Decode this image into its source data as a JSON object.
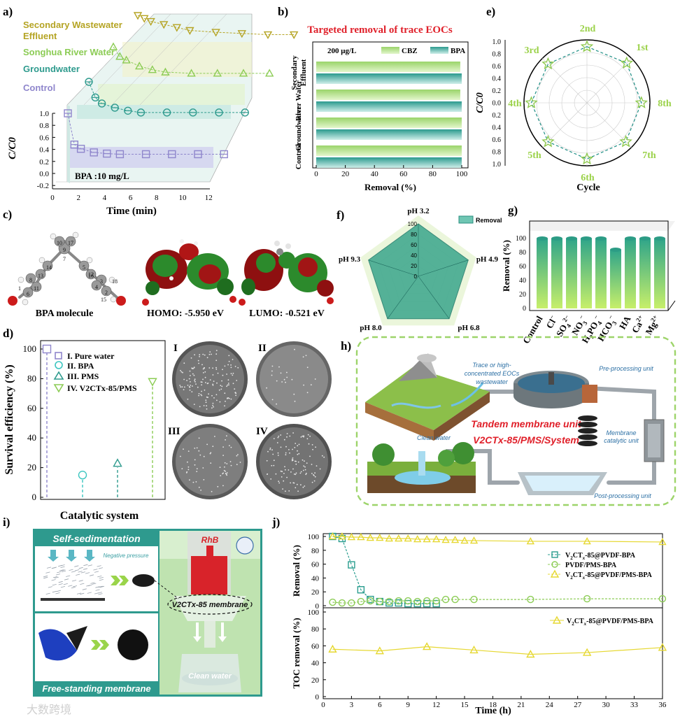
{
  "panels": {
    "a": {
      "label": "a)",
      "legend": [
        "Secondary Wastewater",
        "Effluent",
        "Songhua River Water",
        "Groundwater",
        "Control"
      ],
      "legend_colors": [
        "#b5a424",
        "#b5a424",
        "#8ccc55",
        "#2f9b8e",
        "#8f86cc"
      ],
      "annotation": "BPA :10 mg/L",
      "xlabel": "Time (min)",
      "ylabel": "C/C0",
      "xticks": [
        "0",
        "2",
        "4",
        "6",
        "8",
        "10",
        "12"
      ],
      "yticks": [
        "1.0",
        "0.8",
        "0.6",
        "0.4",
        "0.2",
        "0.0",
        "-0.2"
      ]
    },
    "b": {
      "label": "b)",
      "title": "Targeted removal of trace EOCs",
      "title_color": "#e0202a",
      "conc": "200 μg/L",
      "legend": [
        "CBZ",
        "BPA"
      ],
      "categories": [
        "Secondary Effluent",
        "River Water",
        "Groundwater",
        "Control"
      ],
      "cat_lines": [
        [
          "Secondary",
          "Effluent"
        ],
        [
          "River Water"
        ],
        [
          "Groundwater"
        ],
        [
          "Control"
        ]
      ],
      "xlabel": "Removal (%)",
      "xticks": [
        "0",
        "20",
        "40",
        "60",
        "80",
        "100"
      ]
    },
    "c": {
      "label": "c)",
      "captions": [
        "BPA molecule",
        "HOMO: -5.950 eV",
        "LUMO: -0.521 eV"
      ],
      "atom_numbers": [
        "10",
        "17",
        "9",
        "7",
        "13",
        "8",
        "5",
        "16",
        "3",
        "14",
        "4",
        "11",
        "2",
        "6",
        "12",
        "1",
        "18",
        "15"
      ]
    },
    "d": {
      "label": "d)",
      "ylabel": "Survival efficiency (%)",
      "xlabel": "Catalytic system",
      "yticks": [
        "100",
        "80",
        "60",
        "40",
        "20",
        "0"
      ],
      "legend": [
        "I. Pure water",
        "II. BPA",
        "III. PMS",
        "IV. V2CTx-85/PMS"
      ],
      "plate_labels": [
        "I",
        "II",
        "III",
        "IV"
      ]
    },
    "e": {
      "label": "e)",
      "ylabel": "C/C0",
      "xlabel": "Cycle",
      "radial_ticks": [
        "1.0",
        "0.8",
        "0.6",
        "0.4",
        "0.2",
        "0.0",
        "0.2",
        "0.4",
        "0.6",
        "0.8",
        "1.0"
      ],
      "cycles": [
        "2nd",
        "1st",
        "8th",
        "7th",
        "6th",
        "5th",
        "4th",
        "3rd"
      ]
    },
    "f": {
      "label": "f)",
      "legend": "Removal",
      "axes": [
        "pH 3.2",
        "pH 4.9",
        "pH 6.8",
        "pH 8.0",
        "pH 9.3"
      ],
      "ticks": [
        "100",
        "80",
        "60",
        "40",
        "20",
        "0"
      ]
    },
    "g": {
      "label": "g)",
      "ylabel": "Removal (%)",
      "yticks": [
        "100",
        "80",
        "60",
        "40",
        "20",
        "0"
      ]
    },
    "h": {
      "label": "h)",
      "src_text": [
        "Trace or high-",
        "concentrated EOCs",
        "wastewater"
      ],
      "pre": "Pre-processing unit",
      "tandem": "Tandem membrane unit",
      "system": "V2CTx-85/PMS/System",
      "mcu": [
        "Membrane",
        "catalytic unit"
      ],
      "clean": "Clean water",
      "post": "Post-processing unit"
    },
    "i": {
      "label": "i)",
      "top": "Self-sedimentation",
      "np": "Negative pressure",
      "bottom": "Free-standing membrane",
      "rhb": "RhB",
      "membrane": "V2CTx-85 membrane",
      "clean": "Clean water"
    },
    "j": {
      "label": "j)",
      "ylabel_top": "Removal (%)",
      "ylabel_bottom": "TOC removal (%)",
      "xlabel": "Time (h)",
      "legend_top": [
        "V2CTx-85@PVDF-BPA",
        "PVDF/PMS-BPA",
        "V2CTx-85@PVDF/PMS-BPA"
      ],
      "legend_bottom": "V2CTx-85@PVDF/PMS-BPA",
      "yticks": [
        "100",
        "80",
        "60",
        "40",
        "20",
        "0"
      ],
      "xticks": [
        "0",
        "3",
        "6",
        "9",
        "12",
        "15",
        "18",
        "21",
        "24",
        "27",
        "30",
        "33",
        "36"
      ]
    }
  },
  "watermark": "大数跨境",
  "chart_data": [
    {
      "id": "a",
      "type": "line",
      "title": "",
      "xlabel": "Time (min)",
      "ylabel": "C/C0",
      "ylim": [
        -0.2,
        1.0
      ],
      "xlim": [
        0,
        12
      ],
      "series": [
        {
          "name": "Control",
          "x": [
            0,
            0.5,
            1,
            2,
            3,
            4,
            6,
            8,
            10,
            12
          ],
          "values": [
            1.0,
            0.48,
            0.41,
            0.35,
            0.33,
            0.32,
            0.32,
            0.32,
            0.32,
            0.32
          ]
        },
        {
          "name": "Groundwater",
          "x": [
            0,
            0.5,
            1,
            2,
            3,
            4,
            6,
            8,
            10,
            12
          ],
          "values": [
            1.0,
            0.74,
            0.64,
            0.57,
            0.52,
            0.49,
            0.49,
            0.49,
            0.49,
            0.49
          ]
        },
        {
          "name": "Songhua River Water",
          "x": [
            0,
            0.5,
            1,
            2,
            3,
            4,
            6,
            8,
            10,
            12
          ],
          "values": [
            1.0,
            0.84,
            0.78,
            0.68,
            0.62,
            0.58,
            0.56,
            0.56,
            0.56,
            0.56
          ]
        },
        {
          "name": "Secondary Wastewater Effluent",
          "x": [
            0,
            0.5,
            1,
            2,
            3,
            4,
            6,
            8,
            10,
            12
          ],
          "values": [
            1.0,
            0.95,
            0.9,
            0.85,
            0.8,
            0.75,
            0.72,
            0.7,
            0.68,
            0.68
          ]
        }
      ]
    },
    {
      "id": "b",
      "type": "bar",
      "title": "Targeted removal of trace EOCs",
      "xlabel": "Removal (%)",
      "ylabel": "",
      "categories": [
        "Secondary Effluent",
        "River Water",
        "Groundwater",
        "Control"
      ],
      "xlim": [
        0,
        100
      ],
      "series": [
        {
          "name": "CBZ",
          "values": [
            99,
            99,
            100,
            100
          ]
        },
        {
          "name": "BPA",
          "values": [
            100,
            100,
            100,
            100
          ]
        }
      ]
    },
    {
      "id": "d",
      "type": "scatter",
      "xlabel": "Catalytic system",
      "ylabel": "Survival efficiency (%)",
      "ylim": [
        0,
        100
      ],
      "categories": [
        "I. Pure water",
        "II. BPA",
        "III. PMS",
        "IV. V2CTx-85/PMS"
      ],
      "values": [
        100,
        15,
        23,
        78
      ]
    },
    {
      "id": "e",
      "type": "line",
      "xlabel": "Cycle",
      "ylabel": "C/C0",
      "categories": [
        "1st",
        "2nd",
        "3rd",
        "4th",
        "5th",
        "6th",
        "7th",
        "8th"
      ],
      "values": [
        0.97,
        0.97,
        0.95,
        0.96,
        0.95,
        0.97,
        0.95,
        0.94
      ]
    },
    {
      "id": "f",
      "type": "radar",
      "legend": "Removal",
      "categories": [
        "pH 3.2",
        "pH 4.9",
        "pH 6.8",
        "pH 8.0",
        "pH 9.3"
      ],
      "values": [
        100,
        100,
        100,
        100,
        100
      ],
      "range": [
        0,
        100
      ]
    },
    {
      "id": "g",
      "type": "bar",
      "ylabel": "Removal (%)",
      "ylim": [
        0,
        100
      ],
      "categories": [
        "Control",
        "Cl-",
        "SO4 2-",
        "NO3-",
        "H2PO4-",
        "HCO3-",
        "HA",
        "Ca2+",
        "Mg2+"
      ],
      "values": [
        100,
        100,
        100,
        100,
        100,
        84,
        100,
        100,
        100
      ]
    },
    {
      "id": "j-top",
      "type": "line",
      "xlabel": "Time (h)",
      "ylabel": "Removal (%)",
      "ylim": [
        0,
        100
      ],
      "xlim": [
        0,
        36
      ],
      "series": [
        {
          "name": "V2CTx-85@PVDF-BPA",
          "x": [
            1,
            2,
            3,
            4,
            5,
            6,
            7,
            8,
            9,
            10,
            11,
            12
          ],
          "values": [
            100,
            97,
            59,
            23,
            9,
            6,
            4,
            4,
            3,
            3,
            3,
            3
          ]
        },
        {
          "name": "PVDF/PMS-BPA",
          "x": [
            1,
            2,
            3,
            4,
            5,
            6,
            7,
            8,
            9,
            10,
            11,
            12,
            13,
            14,
            16,
            22,
            28,
            36
          ],
          "values": [
            5,
            4,
            4,
            6,
            7,
            6,
            6,
            7,
            7,
            6,
            7,
            7,
            9,
            9,
            9,
            9,
            10,
            10
          ]
        },
        {
          "name": "V2CTx-85@PVDF/PMS-BPA",
          "x": [
            1,
            2,
            3,
            4,
            5,
            6,
            7,
            8,
            9,
            10,
            11,
            12,
            13,
            14,
            15,
            16,
            22,
            28,
            36
          ],
          "values": [
            100,
            100,
            99,
            99,
            98,
            98,
            97,
            97,
            97,
            96,
            96,
            96,
            95,
            95,
            94,
            94,
            93,
            93,
            92
          ]
        }
      ]
    },
    {
      "id": "j-bottom",
      "type": "line",
      "xlabel": "Time (h)",
      "ylabel": "TOC removal (%)",
      "ylim": [
        0,
        100
      ],
      "xlim": [
        0,
        36
      ],
      "series": [
        {
          "name": "V2CTx-85@PVDF/PMS-BPA",
          "x": [
            1,
            6,
            11,
            16,
            22,
            28,
            36
          ],
          "values": [
            56,
            54,
            59,
            55,
            50,
            52,
            58
          ]
        }
      ]
    }
  ]
}
